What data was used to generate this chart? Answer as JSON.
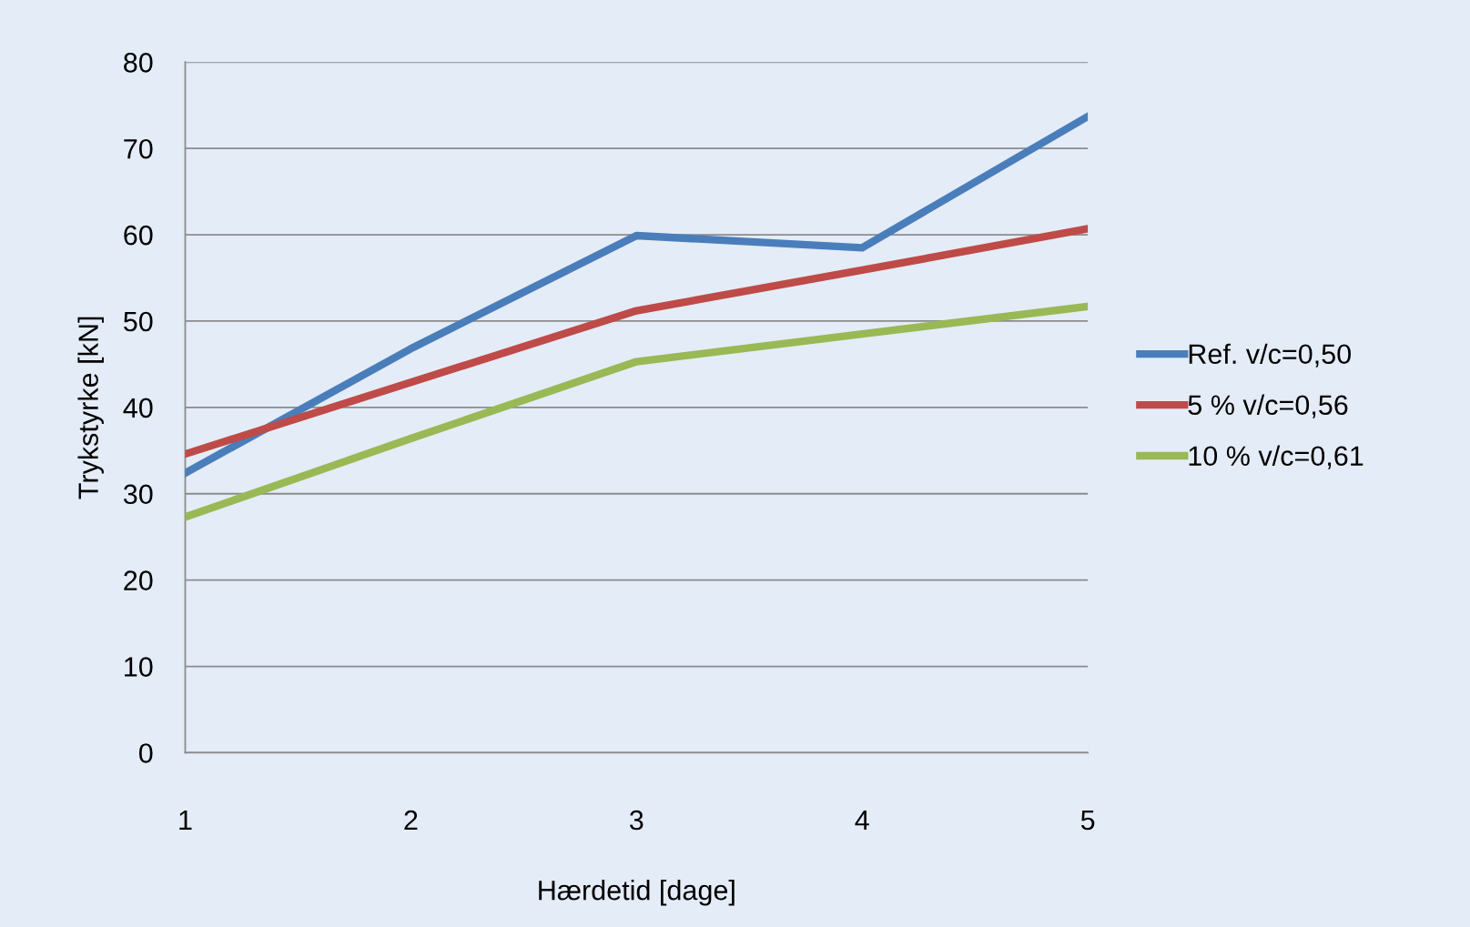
{
  "chart_data": {
    "type": "line",
    "xlabel": "Hærdetid [dage]",
    "ylabel": "Trykstyrke [kN]",
    "x": [
      1,
      2,
      3,
      4,
      5
    ],
    "series": [
      {
        "name": "Ref. v/c=0,50",
        "color": "#4a7ebb",
        "values": [
          32.4,
          46.8,
          59.9,
          58.5,
          73.7
        ]
      },
      {
        "name": "5 % v/c=0,56",
        "color": "#be4b48",
        "values": [
          34.6,
          42.9,
          51.2,
          55.9,
          60.7
        ]
      },
      {
        "name": "10 % v/c=0,61",
        "color": "#98b954",
        "values": [
          27.3,
          36.4,
          45.3,
          48.5,
          51.7
        ]
      }
    ],
    "xlim": [
      1,
      5
    ],
    "xticks": [
      1,
      2,
      3,
      4,
      5
    ],
    "ylim": [
      0,
      80
    ],
    "yticks": [
      0,
      10,
      20,
      30,
      40,
      50,
      60,
      70,
      80
    ],
    "grid": "y",
    "legend": "right",
    "marker": "none",
    "line_style": "solid"
  }
}
